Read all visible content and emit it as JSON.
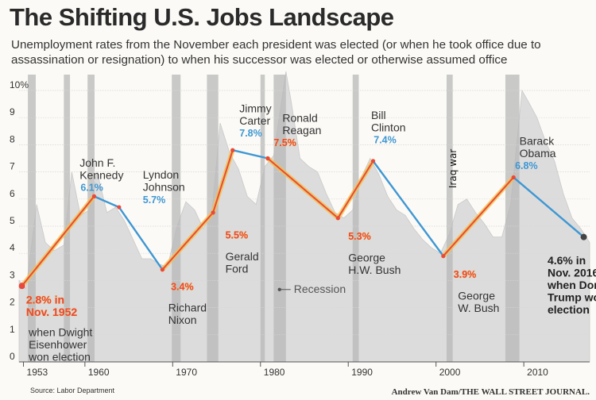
{
  "title": "The Shifting U.S. Jobs Landscape",
  "subtitle": "Unemployment rates from the November each president was elected (or when he took office due to assassination or resignation) to when his successor was elected or otherwise assumed office",
  "source": "Source: Labor Department",
  "credit": "Andrew Van Dam/THE WALL STREET JOURNAL.",
  "chart_data": {
    "type": "line",
    "ylim": [
      0,
      10
    ],
    "xlim": [
      1952.5,
      2017.5
    ],
    "yticks": [
      "0",
      "1",
      "2",
      "3",
      "4",
      "5",
      "6",
      "7",
      "8",
      "9",
      "10%"
    ],
    "xticks": [
      {
        "label": "1953",
        "year": 1953
      },
      {
        "label": "1960",
        "year": 1960
      },
      {
        "label": "1970",
        "year": 1970
      },
      {
        "label": "1980",
        "year": 1980
      },
      {
        "label": "1990",
        "year": 1990
      },
      {
        "label": "2000",
        "year": 2000
      },
      {
        "label": "2010",
        "year": 2010
      }
    ],
    "colors": {
      "democrat": "#3f97d3",
      "republican": "#e8493d",
      "republican_glow": "#f2c34b",
      "background_area": "#dcdcdc",
      "recession": "#b8b8b8"
    },
    "recessions": [
      [
        1953.5,
        1954.4
      ],
      [
        1957.6,
        1958.3
      ],
      [
        1960.3,
        1961.1
      ],
      [
        1969.9,
        1970.9
      ],
      [
        1973.9,
        1975.2
      ],
      [
        1980.0,
        1980.5
      ],
      [
        1981.5,
        1982.9
      ],
      [
        1990.5,
        1991.2
      ],
      [
        2001.2,
        2001.9
      ],
      [
        2007.9,
        2009.5
      ]
    ],
    "background_series": {
      "x": [
        1952.5,
        1953.3,
        1954.5,
        1955.5,
        1956.5,
        1957.6,
        1958.5,
        1959.5,
        1960.5,
        1961.4,
        1962.5,
        1963.5,
        1964.5,
        1965.5,
        1966.5,
        1967.5,
        1968.5,
        1969.4,
        1970.5,
        1971.5,
        1972.5,
        1973.5,
        1974.5,
        1975.4,
        1976.5,
        1977.5,
        1978.5,
        1979.5,
        1980.5,
        1981.5,
        1982.9,
        1983.5,
        1984.5,
        1985.5,
        1986.5,
        1987.5,
        1988.5,
        1989.5,
        1990.5,
        1991.5,
        1992.5,
        1993.5,
        1994.5,
        1995.5,
        1996.5,
        1997.5,
        1998.5,
        1999.5,
        2000.5,
        2001.5,
        2002.5,
        2003.5,
        2004.5,
        2005.5,
        2006.5,
        2007.5,
        2008.5,
        2009.8,
        2010.5,
        2011.5,
        2012.5,
        2013.5,
        2014.5,
        2015.5,
        2016.5,
        2017.5
      ],
      "y": [
        3.0,
        2.7,
        5.8,
        4.4,
        4.1,
        4.3,
        7.0,
        5.4,
        5.6,
        7.0,
        5.5,
        5.7,
        5.2,
        4.5,
        3.8,
        3.8,
        3.6,
        3.5,
        5.0,
        5.9,
        5.6,
        4.9,
        5.6,
        8.8,
        7.7,
        7.1,
        6.1,
        5.8,
        7.2,
        7.6,
        10.7,
        9.6,
        7.5,
        7.2,
        7.0,
        6.2,
        5.5,
        5.3,
        5.6,
        6.8,
        7.5,
        6.9,
        6.1,
        5.6,
        5.4,
        4.9,
        4.5,
        4.2,
        4.0,
        4.7,
        5.8,
        6.0,
        5.5,
        5.1,
        4.6,
        4.6,
        5.8,
        10.0,
        9.6,
        9.0,
        8.1,
        7.4,
        6.2,
        5.3,
        4.9,
        4.4
      ]
    },
    "series": [
      {
        "party": "republican",
        "president": "Dwight Eisenhower",
        "x": [
          1952.83,
          1961.05
        ],
        "y": [
          2.8,
          6.1
        ]
      },
      {
        "party": "democrat",
        "president": "John F. Kennedy",
        "x": [
          1961.05,
          1963.89
        ],
        "y": [
          6.1,
          5.7
        ]
      },
      {
        "party": "democrat",
        "president": "Lyndon Johnson",
        "x": [
          1963.89,
          1968.83
        ],
        "y": [
          5.7,
          3.4
        ]
      },
      {
        "party": "republican",
        "president": "Richard Nixon",
        "x": [
          1968.83,
          1974.6
        ],
        "y": [
          3.4,
          5.5
        ]
      },
      {
        "party": "republican",
        "president": "Gerald Ford",
        "x": [
          1974.6,
          1976.83
        ],
        "y": [
          5.5,
          7.8
        ]
      },
      {
        "party": "democrat",
        "president": "Jimmy Carter",
        "x": [
          1976.83,
          1980.83
        ],
        "y": [
          7.8,
          7.5
        ]
      },
      {
        "party": "republican",
        "president": "Ronald Reagan",
        "x": [
          1980.83,
          1988.83
        ],
        "y": [
          7.5,
          5.3
        ]
      },
      {
        "party": "republican",
        "president": "George H.W. Bush",
        "x": [
          1988.83,
          1992.83
        ],
        "y": [
          5.3,
          7.4
        ]
      },
      {
        "party": "democrat",
        "president": "Bill Clinton",
        "x": [
          1992.83,
          2000.83
        ],
        "y": [
          7.4,
          3.9
        ]
      },
      {
        "party": "republican",
        "president": "George W. Bush",
        "x": [
          2000.83,
          2008.83
        ],
        "y": [
          3.9,
          6.8
        ]
      },
      {
        "party": "democrat",
        "president": "Barack Obama",
        "x": [
          2008.83,
          2016.83
        ],
        "y": [
          6.8,
          4.6
        ]
      }
    ],
    "annotations": [
      {
        "id": "eisenhower-value",
        "kind": "value",
        "party": "republican",
        "lines": [
          "2.8% in",
          "Nov. 1952"
        ],
        "x": 1953.3,
        "y": 2.15
      },
      {
        "id": "eisenhower-name",
        "kind": "name",
        "lines": [
          "when Dwight",
          "Eisenhower",
          "won election"
        ],
        "x": 1953.6,
        "y": 0.95
      },
      {
        "id": "kennedy-name",
        "kind": "name",
        "lines": [
          "John F.",
          "Kennedy"
        ],
        "x": 1959.4,
        "y": 7.2
      },
      {
        "id": "kennedy-value",
        "kind": "value",
        "party": "democrat",
        "text": "6.1%",
        "x": 1959.5,
        "y": 6.3
      },
      {
        "id": "johnson-name",
        "kind": "name",
        "lines": [
          "Lyndon",
          "Johnson"
        ],
        "x": 1966.6,
        "y": 6.75
      },
      {
        "id": "johnson-value",
        "kind": "value",
        "party": "democrat",
        "text": "5.7%",
        "x": 1966.6,
        "y": 5.85
      },
      {
        "id": "nixon-value",
        "kind": "value",
        "party": "republican",
        "text": "3.4%",
        "x": 1969.8,
        "y": 2.65
      },
      {
        "id": "nixon-name",
        "kind": "name",
        "lines": [
          "Richard",
          "Nixon"
        ],
        "x": 1969.5,
        "y": 1.85
      },
      {
        "id": "ford-value",
        "kind": "value",
        "party": "republican",
        "text": "5.5%",
        "x": 1976.0,
        "y": 4.55
      },
      {
        "id": "ford-name",
        "kind": "name",
        "lines": [
          "Gerald",
          "Ford"
        ],
        "x": 1976.0,
        "y": 3.75
      },
      {
        "id": "carter-name",
        "kind": "name",
        "lines": [
          "Jimmy",
          "Carter"
        ],
        "x": 1977.6,
        "y": 9.2
      },
      {
        "id": "carter-value",
        "kind": "value",
        "party": "democrat",
        "text": "7.8%",
        "x": 1977.6,
        "y": 8.3
      },
      {
        "id": "reagan-name",
        "kind": "name",
        "lines": [
          "Ronald",
          "Reagan"
        ],
        "x": 1982.5,
        "y": 8.85
      },
      {
        "id": "reagan-value",
        "kind": "value",
        "party": "republican",
        "text": "7.5%",
        "x": 1981.5,
        "y": 7.95
      },
      {
        "id": "hwbush-value",
        "kind": "value",
        "party": "republican",
        "text": "5.3%",
        "x": 1990.0,
        "y": 4.5
      },
      {
        "id": "hwbush-name",
        "kind": "name",
        "lines": [
          "George",
          "H.W. Bush"
        ],
        "x": 1990.0,
        "y": 3.7
      },
      {
        "id": "clinton-name",
        "kind": "name",
        "lines": [
          "Bill",
          "Clinton"
        ],
        "x": 1992.6,
        "y": 8.95
      },
      {
        "id": "clinton-value",
        "kind": "value",
        "party": "democrat",
        "text": "7.4%",
        "x": 1992.9,
        "y": 8.05
      },
      {
        "id": "wbush-value",
        "kind": "value",
        "party": "republican",
        "text": "3.9%",
        "x": 2002.0,
        "y": 3.1
      },
      {
        "id": "wbush-name",
        "kind": "name",
        "lines": [
          "George",
          "W. Bush"
        ],
        "x": 2002.5,
        "y": 2.3
      },
      {
        "id": "obama-name",
        "kind": "name",
        "lines": [
          "Barack",
          "Obama"
        ],
        "x": 2009.5,
        "y": 8.0
      },
      {
        "id": "obama-value",
        "kind": "value",
        "party": "democrat",
        "text": "6.8%",
        "x": 2009.0,
        "y": 7.1
      },
      {
        "id": "trump-value",
        "kind": "value-bold",
        "lines": [
          "4.6% in",
          "Nov. 2016",
          "when Donald",
          "Trump won",
          "election"
        ],
        "x": 2012.7,
        "y": 3.6
      },
      {
        "id": "recession-label",
        "kind": "recession-key",
        "text": "Recession",
        "x": 1983.8,
        "y": 2.55
      },
      {
        "id": "iraq-war",
        "kind": "rotated",
        "text": "Iraq war",
        "x": 2002.3,
        "y": 6.4
      }
    ]
  }
}
